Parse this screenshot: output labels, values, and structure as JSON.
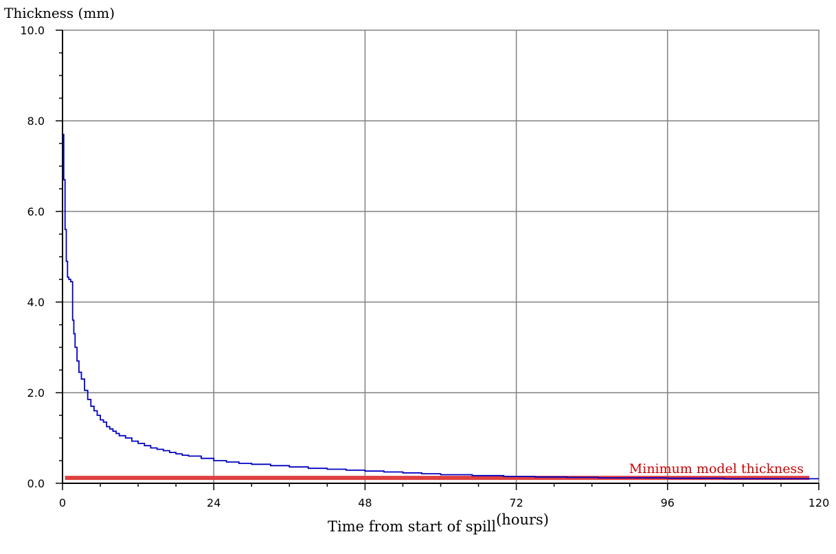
{
  "chart_data": {
    "type": "line",
    "ylabel": "Thickness (mm)",
    "xlabel": "Time from start of spill",
    "xlabel_unit": "(hours)",
    "xlim": [
      0,
      120
    ],
    "ylim": [
      0,
      10
    ],
    "x_ticks": [
      "0",
      "24",
      "48",
      "72",
      "96",
      "120"
    ],
    "y_ticks": [
      "0.0",
      "2.0",
      "4.0",
      "6.0",
      "8.0",
      "10.0"
    ],
    "grid": true,
    "series": [
      {
        "color": "#0000c0",
        "x": [
          0.1,
          0.2,
          0.4,
          0.6,
          0.8,
          1.0,
          1.3,
          1.6,
          1.8,
          2.0,
          2.3,
          2.6,
          3.0,
          3.5,
          4.0,
          4.5,
          5.0,
          5.5,
          6.0,
          6.5,
          7.0,
          7.5,
          8.0,
          8.5,
          9.0,
          10.0,
          11.0,
          12.0,
          13.0,
          14.0,
          15.0,
          16.0,
          17.0,
          18.0,
          19.0,
          20.0,
          22.0,
          24.0,
          26.0,
          28.0,
          30.0,
          33.0,
          36.0,
          39.0,
          42.0,
          45.0,
          48.0,
          51.0,
          54.0,
          57.0,
          60.0,
          65.0,
          70.0,
          75.0,
          80.0,
          85.0,
          90.0,
          96.0,
          100.0,
          105.0,
          110.0,
          115.0,
          120.0
        ],
        "y": [
          7.7,
          6.7,
          5.6,
          4.9,
          4.55,
          4.5,
          4.45,
          3.6,
          3.3,
          3.0,
          2.7,
          2.45,
          2.3,
          2.05,
          1.85,
          1.7,
          1.6,
          1.5,
          1.4,
          1.35,
          1.25,
          1.2,
          1.15,
          1.1,
          1.05,
          1.0,
          0.93,
          0.88,
          0.83,
          0.78,
          0.75,
          0.72,
          0.68,
          0.65,
          0.62,
          0.6,
          0.55,
          0.5,
          0.47,
          0.44,
          0.42,
          0.39,
          0.36,
          0.33,
          0.31,
          0.29,
          0.27,
          0.25,
          0.23,
          0.21,
          0.19,
          0.17,
          0.15,
          0.14,
          0.13,
          0.12,
          0.12,
          0.11,
          0.11,
          0.1,
          0.1,
          0.1,
          0.1
        ]
      }
    ],
    "reference_line": {
      "label": "Minimum model thickness",
      "y": 0.12,
      "x_start": 0.4,
      "x_end": 118.5,
      "color": "#e04040",
      "label_color": "#cc0000"
    }
  }
}
